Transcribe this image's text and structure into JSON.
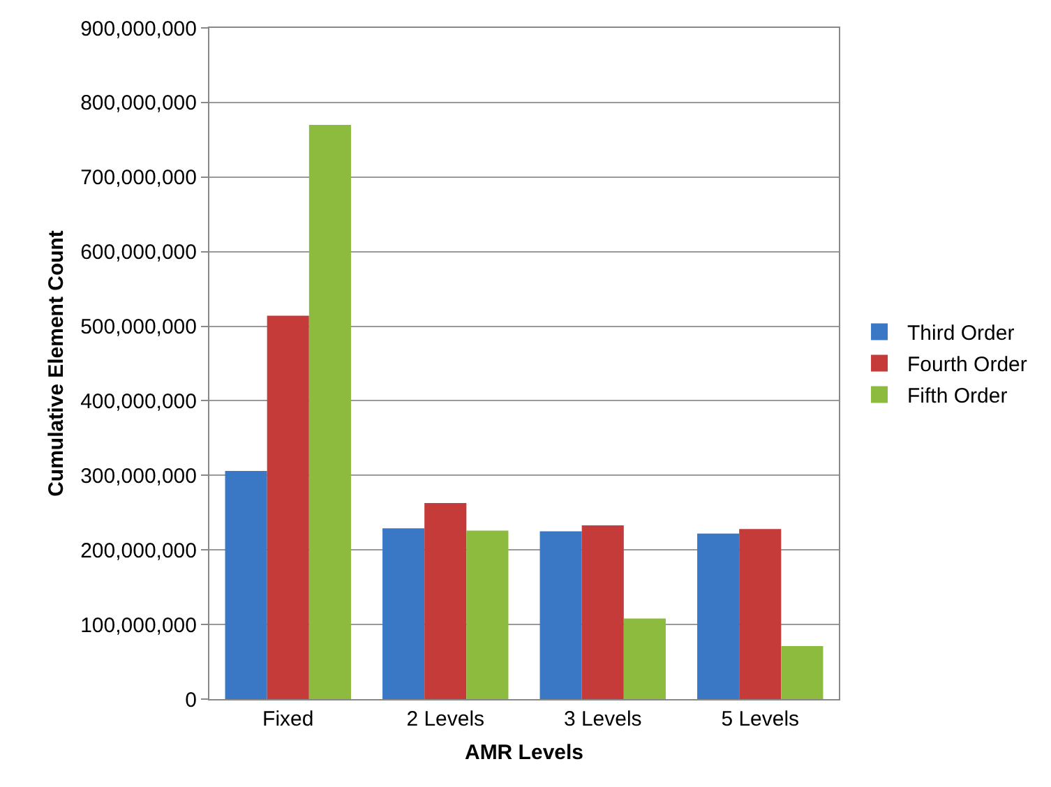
{
  "chart_data": {
    "type": "bar",
    "xlabel": "AMR Levels",
    "ylabel": "Cumulative Element Count",
    "categories": [
      "Fixed",
      "2 Levels",
      "3 Levels",
      "5 Levels"
    ],
    "series": [
      {
        "name": "Third Order",
        "color": "#3a78c6",
        "values": [
          306000000,
          229000000,
          225000000,
          222000000
        ]
      },
      {
        "name": "Fourth Order",
        "color": "#c53b39",
        "values": [
          514000000,
          263000000,
          233000000,
          228000000
        ]
      },
      {
        "name": "Fifth Order",
        "color": "#8dbb3e",
        "values": [
          770000000,
          226000000,
          108000000,
          71000000
        ]
      }
    ],
    "ylim": [
      0,
      900000000
    ],
    "yticks": [
      {
        "value": 0,
        "label": "0"
      },
      {
        "value": 100000000,
        "label": "100,000,000"
      },
      {
        "value": 200000000,
        "label": "200,000,000"
      },
      {
        "value": 300000000,
        "label": "300,000,000"
      },
      {
        "value": 400000000,
        "label": "400,000,000"
      },
      {
        "value": 500000000,
        "label": "500,000,000"
      },
      {
        "value": 600000000,
        "label": "600,000,000"
      },
      {
        "value": 700000000,
        "label": "700,000,000"
      },
      {
        "value": 800000000,
        "label": "800,000,000"
      },
      {
        "value": 900000000,
        "label": "900,000,000"
      }
    ],
    "grid": "y",
    "legend": "right"
  }
}
